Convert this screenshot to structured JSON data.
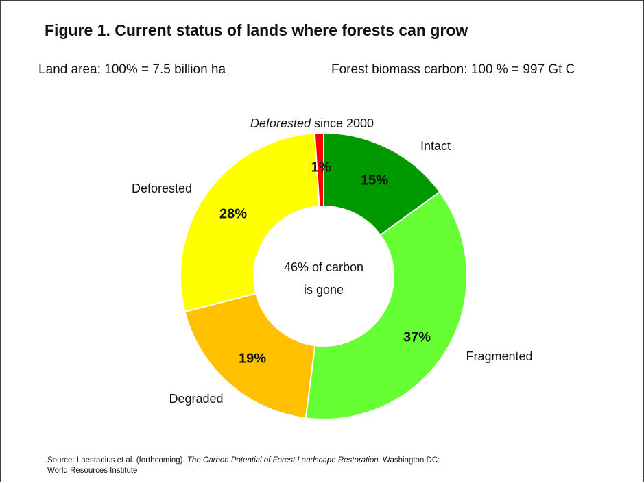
{
  "figure": {
    "title": "Figure 1. Current status of lands where forests can grow",
    "land_area_note": "Land area: 100% = 7.5 billion ha",
    "carbon_note": "Forest biomass carbon: 100 % = 997 Gt C",
    "center_text_line1": "46% of carbon",
    "center_text_line2": "is gone",
    "source_prefix": "Source:  Laestadius et al. (forthcoming). ",
    "source_title": "The Carbon Potential of Forest Landscape Restoration.",
    "source_suffix": "  Washington DC:",
    "source_line2": "World Resources Institute"
  },
  "chart_data": {
    "type": "pie",
    "donut": true,
    "title": "Figure 1. Current status of lands where forests can grow",
    "legend": "none",
    "slices": [
      {
        "name": "Intact",
        "value": 15,
        "label": "15%",
        "color": "#009900"
      },
      {
        "name": "Fragmented",
        "value": 37,
        "label": "37%",
        "color": "#66FF33"
      },
      {
        "name": "Degraded",
        "value": 19,
        "label": "19%",
        "color": "#FFC000"
      },
      {
        "name": "Deforested",
        "value": 28,
        "label": "28%",
        "color": "#FFFF00"
      },
      {
        "name": "Deforested since 2000",
        "value": 1,
        "label": "1%",
        "color": "#FF0000",
        "italic_part": "Deforested"
      }
    ]
  }
}
